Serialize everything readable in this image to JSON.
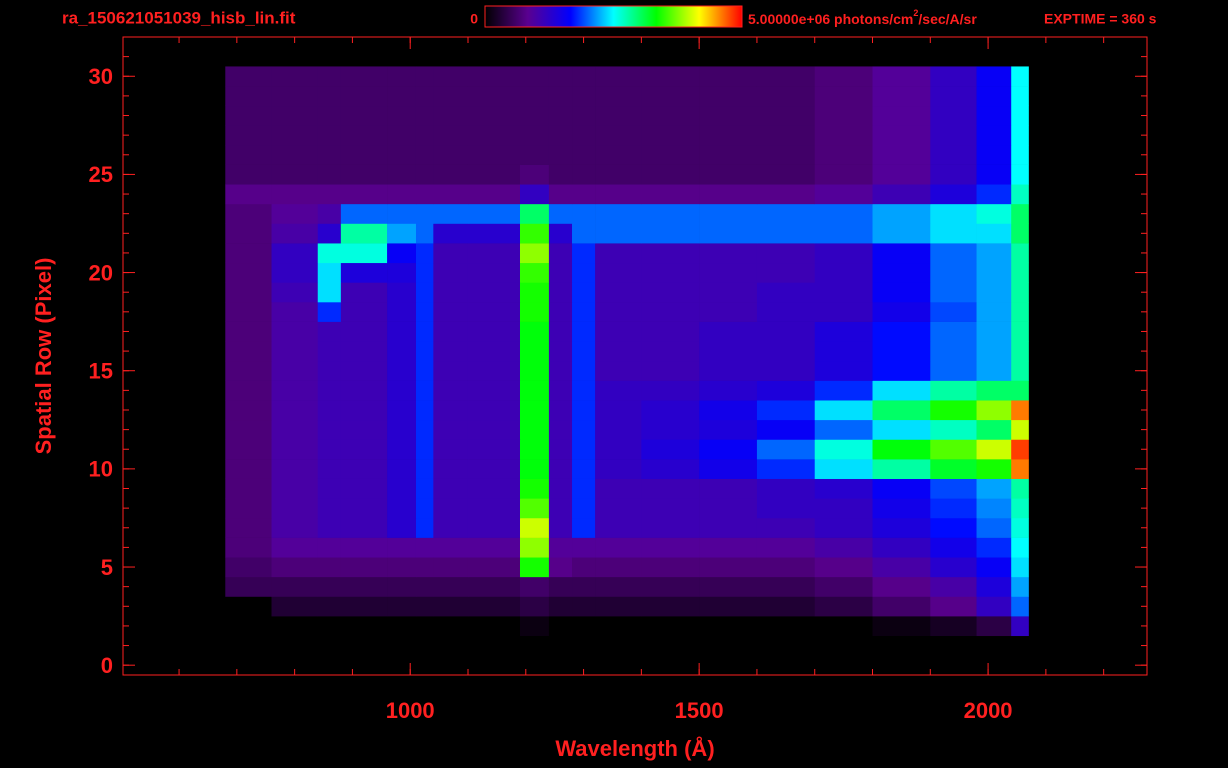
{
  "chart_data": {
    "type": "heatmap",
    "title": "ra_150621051039_hisb_lin.fit",
    "exptime": "EXPTIME = 360 s",
    "colorbar": {
      "min": 0,
      "max": {
        "value": 5000000,
        "label": "5.00000e+06"
      },
      "unit_a": "photons/cm",
      "unit_sup": "2",
      "unit_b": "/sec/A/sr"
    },
    "colormap": [
      "#000000",
      "#5a0090",
      "#0000ff",
      "#00ffff",
      "#00ff00",
      "#ffff00",
      "#ff0000"
    ],
    "x_label": "Wavelength (Å)",
    "y_label": "Spatial Row (Pixel)",
    "xlim": [
      503,
      2275
    ],
    "ylim": [
      -0.5,
      32
    ],
    "xticks": [
      1000,
      1500,
      2000
    ],
    "yticks": [
      0,
      5,
      10,
      15,
      20,
      25,
      30
    ],
    "xminorstep": 100,
    "yminorstep": 1,
    "axis_color": "#ff2020",
    "xbins": [
      680,
      760,
      840,
      880,
      960,
      1010,
      1040,
      1100,
      1190,
      1240,
      1280,
      1320,
      1400,
      1500,
      1600,
      1700,
      1800,
      1900,
      1980,
      2040,
      2070
    ],
    "y": [
      2,
      3,
      4,
      5,
      6,
      7,
      8,
      9,
      10,
      11,
      12,
      13,
      14,
      15,
      16,
      17,
      18,
      19,
      20,
      21,
      22,
      23,
      24,
      25,
      26,
      27,
      28,
      29,
      30
    ],
    "values": [
      [
        0,
        0,
        0,
        0,
        0,
        0,
        0,
        0,
        100000.0,
        0,
        0,
        0,
        0,
        0,
        0,
        0,
        100000.0,
        200000.0,
        400000.0,
        1200000.0
      ],
      [
        0,
        300000.0,
        300000.0,
        300000.0,
        300000.0,
        300000.0,
        300000.0,
        300000.0,
        400000.0,
        300000.0,
        300000.0,
        300000.0,
        300000.0,
        300000.0,
        300000.0,
        400000.0,
        600000.0,
        800000.0,
        1200000.0,
        2000000.0
      ],
      [
        500000.0,
        500000.0,
        500000.0,
        500000.0,
        500000.0,
        500000.0,
        500000.0,
        500000.0,
        600000.0,
        500000.0,
        500000.0,
        500000.0,
        500000.0,
        500000.0,
        500000.0,
        600000.0,
        800000.0,
        1000000.0,
        1400000.0,
        2200000.0
      ],
      [
        600000.0,
        700000.0,
        700000.0,
        700000.0,
        700000.0,
        700000.0,
        700000.0,
        700000.0,
        3400000.0,
        800000.0,
        700000.0,
        700000.0,
        700000.0,
        700000.0,
        700000.0,
        800000.0,
        1000000.0,
        1300000.0,
        1600000.0,
        2400000.0
      ],
      [
        700000.0,
        900000.0,
        900000.0,
        900000.0,
        900000.0,
        900000.0,
        900000.0,
        900000.0,
        3800000.0,
        900000.0,
        900000.0,
        900000.0,
        900000.0,
        900000.0,
        900000.0,
        1000000.0,
        1200000.0,
        1500000.0,
        1800000.0,
        2500000.0
      ],
      [
        700000.0,
        1000000.0,
        1100000.0,
        1100000.0,
        1300000.0,
        1800000.0,
        1100000.0,
        1100000.0,
        4000000.0,
        1100000.0,
        1800000.0,
        1100000.0,
        1100000.0,
        1100000.0,
        1100000.0,
        1200000.0,
        1400000.0,
        1700000.0,
        2000000.0,
        2600000.0
      ],
      [
        700000.0,
        1000000.0,
        1100000.0,
        1100000.0,
        1300000.0,
        1800000.0,
        1100000.0,
        1100000.0,
        3600000.0,
        1100000.0,
        1800000.0,
        1100000.0,
        1100000.0,
        1100000.0,
        1200000.0,
        1200000.0,
        1500000.0,
        1800000.0,
        2100000.0,
        2700000.0
      ],
      [
        700000.0,
        1000000.0,
        1100000.0,
        1100000.0,
        1300000.0,
        1800000.0,
        1100000.0,
        1100000.0,
        3400000.0,
        1100000.0,
        1800000.0,
        1100000.0,
        1100000.0,
        1100000.0,
        1200000.0,
        1300000.0,
        1600000.0,
        1900000.0,
        2200000.0,
        2800000.0
      ],
      [
        700000.0,
        1000000.0,
        1100000.0,
        1100000.0,
        1300000.0,
        1800000.0,
        1100000.0,
        1100000.0,
        3300000.0,
        1100000.0,
        1800000.0,
        1200000.0,
        1300000.0,
        1500000.0,
        1800000.0,
        2400000.0,
        2800000.0,
        3200000.0,
        3400000.0,
        4600000.0
      ],
      [
        700000.0,
        1000000.0,
        1100000.0,
        1100000.0,
        1300000.0,
        1800000.0,
        1100000.0,
        1100000.0,
        3300000.0,
        1100000.0,
        1800000.0,
        1200000.0,
        1400000.0,
        1600000.0,
        2000000.0,
        2600000.0,
        3300000.0,
        3600000.0,
        4000000.0,
        4800000.0
      ],
      [
        700000.0,
        1000000.0,
        1100000.0,
        1100000.0,
        1300000.0,
        1800000.0,
        1100000.0,
        1100000.0,
        3300000.0,
        1100000.0,
        1800000.0,
        1200000.0,
        1300000.0,
        1400000.0,
        1600000.0,
        2000000.0,
        2400000.0,
        2700000.0,
        3000000.0,
        4000000.0
      ],
      [
        700000.0,
        1000000.0,
        1100000.0,
        1100000.0,
        1300000.0,
        1800000.0,
        1100000.0,
        1100000.0,
        3300000.0,
        1100000.0,
        1800000.0,
        1200000.0,
        1300000.0,
        1500000.0,
        1800000.0,
        2400000.0,
        3000000.0,
        3400000.0,
        3800000.0,
        4600000.0
      ],
      [
        700000.0,
        1000000.0,
        1100000.0,
        1100000.0,
        1300000.0,
        1800000.0,
        1100000.0,
        1100000.0,
        3300000.0,
        1100000.0,
        1800000.0,
        1200000.0,
        1200000.0,
        1300000.0,
        1400000.0,
        1800000.0,
        2400000.0,
        2800000.0,
        3000000.0,
        3000000.0
      ],
      [
        700000.0,
        1000000.0,
        1100000.0,
        1100000.0,
        1300000.0,
        1800000.0,
        1100000.0,
        1100000.0,
        3300000.0,
        1100000.0,
        1800000.0,
        1100000.0,
        1100000.0,
        1200000.0,
        1200000.0,
        1400000.0,
        1700000.0,
        2000000.0,
        2200000.0,
        2800000.0
      ],
      [
        700000.0,
        1000000.0,
        1100000.0,
        1100000.0,
        1300000.0,
        1800000.0,
        1100000.0,
        1100000.0,
        3300000.0,
        1100000.0,
        1800000.0,
        1100000.0,
        1100000.0,
        1200000.0,
        1200000.0,
        1400000.0,
        1700000.0,
        2000000.0,
        2200000.0,
        2800000.0
      ],
      [
        700000.0,
        1000000.0,
        1100000.0,
        1100000.0,
        1300000.0,
        1800000.0,
        1100000.0,
        1100000.0,
        3300000.0,
        1100000.0,
        1800000.0,
        1100000.0,
        1100000.0,
        1200000.0,
        1200000.0,
        1400000.0,
        1700000.0,
        2000000.0,
        2200000.0,
        2800000.0
      ],
      [
        700000.0,
        1000000.0,
        1800000.0,
        1100000.0,
        1300000.0,
        1800000.0,
        1100000.0,
        1100000.0,
        3400000.0,
        1100000.0,
        1800000.0,
        1100000.0,
        1100000.0,
        1100000.0,
        1200000.0,
        1200000.0,
        1500000.0,
        1900000.0,
        2200000.0,
        2800000.0
      ],
      [
        700000.0,
        1100000.0,
        2400000.0,
        1100000.0,
        1300000.0,
        1800000.0,
        1100000.0,
        1100000.0,
        3400000.0,
        1100000.0,
        1800000.0,
        1100000.0,
        1100000.0,
        1100000.0,
        1200000.0,
        1200000.0,
        1600000.0,
        2000000.0,
        2200000.0,
        2800000.0
      ],
      [
        700000.0,
        1200000.0,
        2400000.0,
        1400000.0,
        1400000.0,
        1800000.0,
        1100000.0,
        1100000.0,
        3500000.0,
        1100000.0,
        1800000.0,
        1100000.0,
        1100000.0,
        1100000.0,
        1100000.0,
        1200000.0,
        1600000.0,
        2000000.0,
        2200000.0,
        2800000.0
      ],
      [
        700000.0,
        1200000.0,
        2600000.0,
        2600000.0,
        1600000.0,
        1800000.0,
        1100000.0,
        1100000.0,
        3800000.0,
        1100000.0,
        1800000.0,
        1100000.0,
        1100000.0,
        1100000.0,
        1100000.0,
        1200000.0,
        1600000.0,
        2000000.0,
        2200000.0,
        2800000.0
      ],
      [
        700000.0,
        1000000.0,
        1300000.0,
        2800000.0,
        2200000.0,
        2000000.0,
        1300000.0,
        1300000.0,
        3500000.0,
        1300000.0,
        2000000.0,
        2000000.0,
        2000000.0,
        2000000.0,
        2000000.0,
        2000000.0,
        2200000.0,
        2400000.0,
        2400000.0,
        3000000.0
      ],
      [
        700000.0,
        900000.0,
        1000000.0,
        2000000.0,
        2000000.0,
        2000000.0,
        2000000.0,
        2000000.0,
        3000000.0,
        2000000.0,
        2000000.0,
        2000000.0,
        2000000.0,
        2000000.0,
        2000000.0,
        2000000.0,
        2200000.0,
        2400000.0,
        2600000.0,
        3000000.0
      ],
      [
        800000.0,
        800000.0,
        800000.0,
        800000.0,
        800000.0,
        800000.0,
        800000.0,
        800000.0,
        1200000.0,
        800000.0,
        800000.0,
        800000.0,
        800000.0,
        800000.0,
        800000.0,
        900000.0,
        1100000.0,
        1400000.0,
        1800000.0,
        2700000.0
      ],
      [
        600000.0,
        600000.0,
        600000.0,
        600000.0,
        600000.0,
        600000.0,
        600000.0,
        600000.0,
        700000.0,
        600000.0,
        600000.0,
        600000.0,
        600000.0,
        600000.0,
        600000.0,
        700000.0,
        900000.0,
        1200000.0,
        1600000.0,
        2500000.0
      ],
      [
        600000.0,
        600000.0,
        600000.0,
        600000.0,
        600000.0,
        600000.0,
        600000.0,
        600000.0,
        600000.0,
        600000.0,
        600000.0,
        600000.0,
        600000.0,
        600000.0,
        600000.0,
        700000.0,
        900000.0,
        1200000.0,
        1600000.0,
        2500000.0
      ],
      [
        600000.0,
        600000.0,
        600000.0,
        600000.0,
        600000.0,
        600000.0,
        600000.0,
        600000.0,
        600000.0,
        600000.0,
        600000.0,
        600000.0,
        600000.0,
        600000.0,
        600000.0,
        700000.0,
        900000.0,
        1200000.0,
        1600000.0,
        2500000.0
      ],
      [
        600000.0,
        600000.0,
        600000.0,
        600000.0,
        600000.0,
        600000.0,
        600000.0,
        600000.0,
        600000.0,
        600000.0,
        600000.0,
        600000.0,
        600000.0,
        600000.0,
        600000.0,
        700000.0,
        900000.0,
        1200000.0,
        1600000.0,
        2500000.0
      ],
      [
        600000.0,
        600000.0,
        600000.0,
        600000.0,
        600000.0,
        600000.0,
        600000.0,
        600000.0,
        600000.0,
        600000.0,
        600000.0,
        600000.0,
        600000.0,
        600000.0,
        600000.0,
        700000.0,
        900000.0,
        1200000.0,
        1600000.0,
        2500000.0
      ],
      [
        600000.0,
        600000.0,
        600000.0,
        600000.0,
        600000.0,
        600000.0,
        600000.0,
        600000.0,
        600000.0,
        600000.0,
        600000.0,
        600000.0,
        600000.0,
        600000.0,
        600000.0,
        700000.0,
        900000.0,
        1200000.0,
        1600000.0,
        2500000.0
      ]
    ]
  }
}
